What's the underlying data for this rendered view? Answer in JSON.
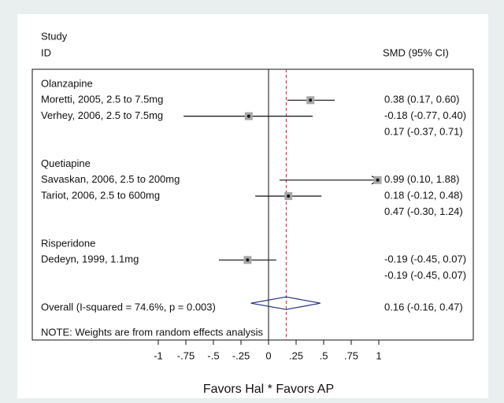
{
  "chart_data": {
    "type": "forest",
    "header": [
      "Study",
      "ID"
    ],
    "effect_header": "SMD (95% CI)",
    "groups": [
      {
        "name": "Olanzapine",
        "studies": [
          {
            "label": "Moretti, 2005, 2.5 to 7.5mg",
            "smd": 0.38,
            "lower": 0.17,
            "upper": 0.6,
            "value_label": "0.38 (0.17, 0.60)"
          },
          {
            "label": "Verhey, 2006, 2.5 to 7.5mg",
            "smd": -0.18,
            "lower": -0.77,
            "upper": 0.4,
            "value_label": "-0.18 (-0.77, 0.40)"
          }
        ],
        "subtotal": {
          "smd": 0.17,
          "lower": -0.37,
          "upper": 0.71,
          "value_label": "0.17 (-0.37, 0.71)"
        }
      },
      {
        "name": "Quetiapine",
        "studies": [
          {
            "label": "Savaskan, 2006, 2.5 to 200mg",
            "smd": 0.99,
            "lower": 0.1,
            "upper": 1.88,
            "value_label": "0.99 (0.10, 1.88)"
          },
          {
            "label": "Tariot, 2006, 2.5 to 600mg",
            "smd": 0.18,
            "lower": -0.12,
            "upper": 0.48,
            "value_label": "0.18 (-0.12, 0.48)"
          }
        ],
        "subtotal": {
          "smd": 0.47,
          "lower": -0.3,
          "upper": 1.24,
          "value_label": "0.47 (-0.30, 1.24)"
        }
      },
      {
        "name": "Risperidone",
        "studies": [
          {
            "label": "Dedeyn, 1999, 1.1mg",
            "smd": -0.19,
            "lower": -0.45,
            "upper": 0.07,
            "value_label": "-0.19 (-0.45, 0.07)"
          }
        ],
        "subtotal": {
          "smd": -0.19,
          "lower": -0.45,
          "upper": 0.07,
          "value_label": "-0.19 (-0.45, 0.07)"
        }
      }
    ],
    "overall": {
      "label": "Overall  (I-squared = 74.6%, p = 0.003)",
      "smd": 0.16,
      "lower": -0.16,
      "upper": 0.47,
      "value_label": "0.16 (-0.16, 0.47)"
    },
    "note": "NOTE: Weights are from random effects analysis",
    "xlabel": "Favors Hal * Favors AP",
    "xlim": [
      -1,
      1
    ],
    "xticks": [
      -1,
      {
        "value": -0.75,
        "label": "-.75"
      },
      {
        "value": -0.5,
        "label": "-.5"
      },
      {
        "value": -0.25,
        "label": "-.25"
      },
      0,
      {
        "value": 0.25,
        "label": ".25"
      },
      {
        "value": 0.5,
        "label": ".5"
      },
      {
        "value": 0.75,
        "label": ".75"
      },
      1
    ],
    "box_color": "#a6a6a6",
    "reference_color": "#b03030"
  }
}
